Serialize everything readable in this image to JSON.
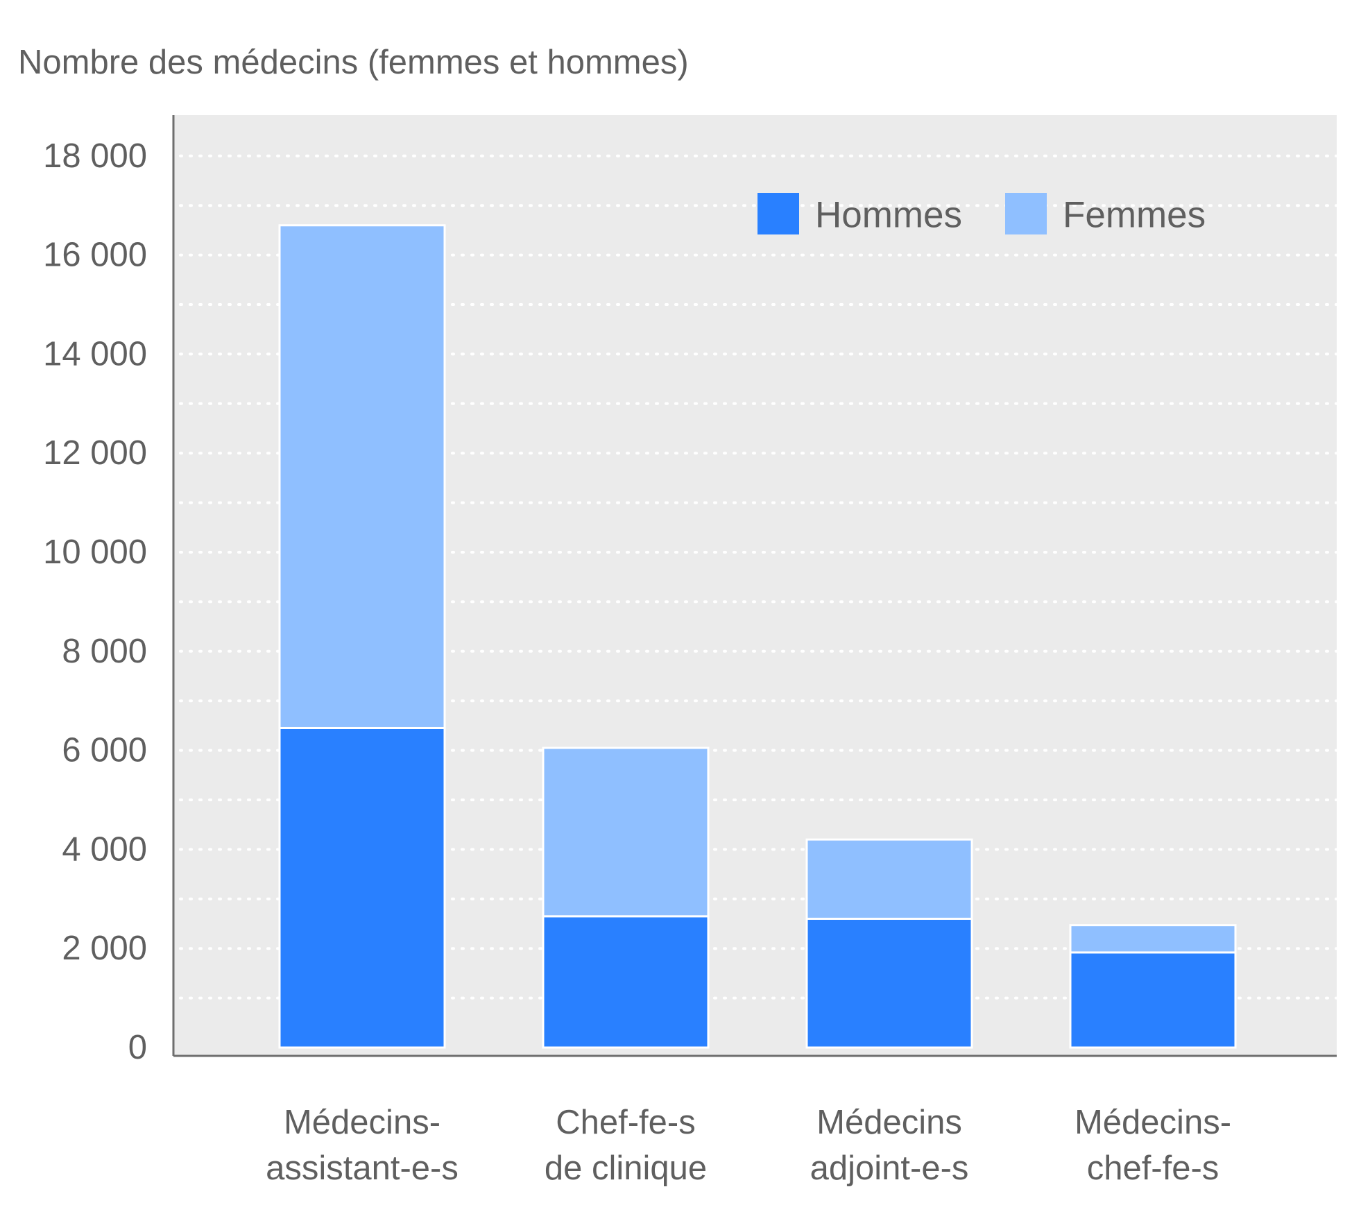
{
  "chart_data": {
    "type": "bar",
    "stacked": true,
    "ylabel": "Nombre des médecins (femmes et hommes)",
    "xlabel": "",
    "ylim": [
      0,
      19000
    ],
    "yticks": [
      0,
      2000,
      4000,
      6000,
      8000,
      10000,
      12000,
      14000,
      16000,
      18000
    ],
    "ytick_labels": [
      "0",
      "2 000",
      "4 000",
      "6 000",
      "8 000",
      "10 000",
      "12 000",
      "14 000",
      "16 000",
      "18 000"
    ],
    "grid": true,
    "legend_position": "top-right",
    "categories": [
      [
        "Médecins-",
        "assistant-e-s"
      ],
      [
        "Chef-fe-s",
        "de clinique"
      ],
      [
        "Médecins",
        "adjoint-e-s"
      ],
      [
        "Médecins-",
        "chef-fe-s"
      ]
    ],
    "series": [
      {
        "name": "Hommes",
        "color": "#2980ff",
        "values": [
          6450,
          2650,
          2600,
          1920
        ]
      },
      {
        "name": "Femmes",
        "color": "#8fbfff",
        "values": [
          10150,
          3400,
          1600,
          550
        ]
      }
    ],
    "colors": {
      "plot_background": "#ebebeb",
      "text": "#5f5f5f",
      "axis": "#6e6e6e",
      "gridline": "#ffffff"
    }
  }
}
